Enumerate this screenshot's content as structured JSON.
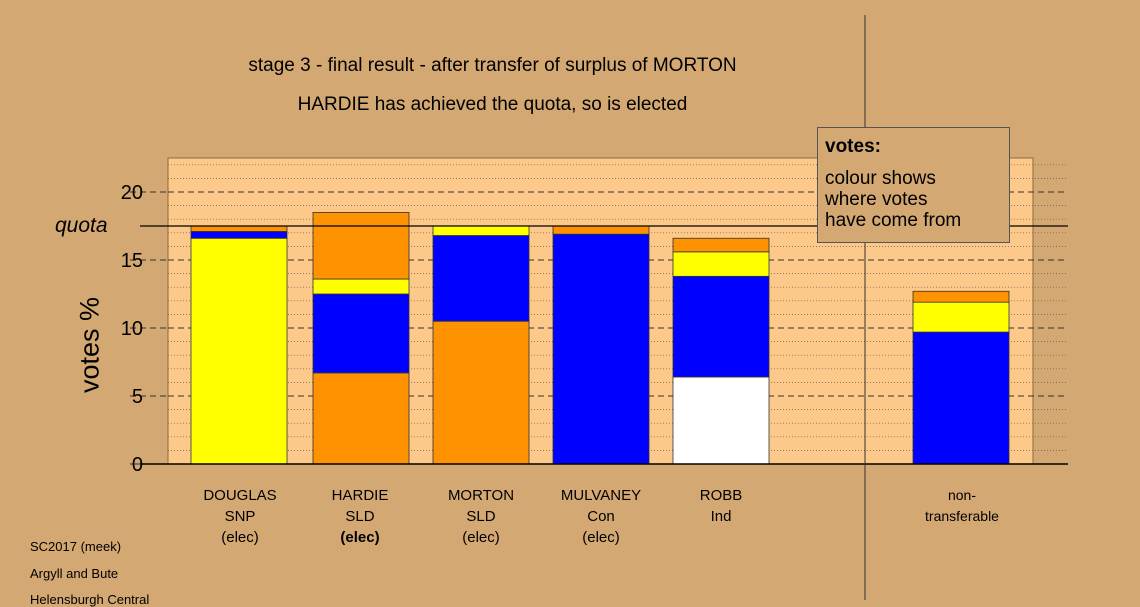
{
  "title": "stage 3 - final result - after transfer of surplus of MORTON",
  "subtitle": "HARDIE has achieved the quota, so is elected",
  "legend": {
    "title": "votes:",
    "lines": [
      "colour shows",
      "where votes",
      "have come from"
    ]
  },
  "footer": {
    "line1": "SC2017 (meek)",
    "line2": "Argyll and Bute",
    "line3": "Helensburgh Central"
  },
  "colors": {
    "background": "#d4a873",
    "plot_bg": "#fdc98a",
    "SNP": "#ffff00",
    "SLD": "#ff9200",
    "Con": "#0000ff",
    "Ind": "#ffffff"
  },
  "candidates": [
    {
      "name": "DOUGLAS",
      "party": "SNP",
      "status": "(elec)",
      "bold": false
    },
    {
      "name": "HARDIE",
      "party": "SLD",
      "status": "(elec)",
      "bold": true
    },
    {
      "name": "MORTON",
      "party": "SLD",
      "status": "(elec)",
      "bold": false
    },
    {
      "name": "MULVANEY",
      "party": "Con",
      "status": "(elec)",
      "bold": false
    },
    {
      "name": "ROBB",
      "party": "Ind",
      "status": "",
      "bold": false
    }
  ],
  "nontransferable": {
    "line1": "non-",
    "line2": "transferable"
  },
  "chart_data": {
    "type": "bar",
    "stacked": true,
    "ylabel": "votes %",
    "ylim": [
      0,
      22.5
    ],
    "yticks": [
      0,
      5,
      10,
      15,
      20
    ],
    "quota": 17.5,
    "quota_label": "quota",
    "categories": [
      "DOUGLAS SNP (elec)",
      "HARDIE SLD (elec)",
      "MORTON SLD (elec)",
      "MULVANEY Con (elec)",
      "ROBB Ind",
      "non-transferable"
    ],
    "bars": [
      {
        "category": "DOUGLAS",
        "segments": [
          {
            "source": "SNP",
            "value": 16.6
          },
          {
            "source": "Con",
            "value": 0.5
          },
          {
            "source": "SLD",
            "value": 0.4
          }
        ]
      },
      {
        "category": "HARDIE",
        "segments": [
          {
            "source": "SLD",
            "value": 6.7
          },
          {
            "source": "Con",
            "value": 5.8
          },
          {
            "source": "SNP",
            "value": 1.1
          },
          {
            "source": "SLD",
            "value": 4.9
          }
        ]
      },
      {
        "category": "MORTON",
        "segments": [
          {
            "source": "SLD",
            "value": 10.5
          },
          {
            "source": "Con",
            "value": 6.3
          },
          {
            "source": "SNP",
            "value": 0.7
          }
        ]
      },
      {
        "category": "MULVANEY",
        "segments": [
          {
            "source": "Con",
            "value": 16.9
          },
          {
            "source": "SLD",
            "value": 0.6
          }
        ]
      },
      {
        "category": "ROBB",
        "segments": [
          {
            "source": "Ind",
            "value": 6.4
          },
          {
            "source": "Con",
            "value": 7.4
          },
          {
            "source": "SNP",
            "value": 1.8
          },
          {
            "source": "SLD",
            "value": 1.0
          }
        ]
      },
      {
        "category": "non-transferable",
        "segments": [
          {
            "source": "Con",
            "value": 9.7
          },
          {
            "source": "SNP",
            "value": 2.2
          },
          {
            "source": "SLD",
            "value": 0.8
          }
        ]
      }
    ]
  }
}
